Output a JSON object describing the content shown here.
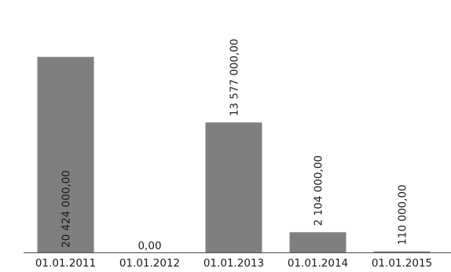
{
  "chart_data": {
    "type": "bar",
    "categories": [
      "01.01.2011",
      "01.01.2012",
      "01.01.2013",
      "01.01.2014",
      "01.01.2015"
    ],
    "values": [
      20424000,
      0,
      13577000,
      2104000,
      110000
    ],
    "value_labels": [
      "20 424 000,00",
      "0,00",
      "13 577 000,00",
      "2 104 000,00",
      "110 000,00"
    ],
    "ylim": [
      0,
      23500000
    ],
    "grid": false,
    "legend": "none",
    "bar_color": "#7f7f7f",
    "axis_color": "#4a4a4a",
    "text_color": "#1a1a1a"
  }
}
